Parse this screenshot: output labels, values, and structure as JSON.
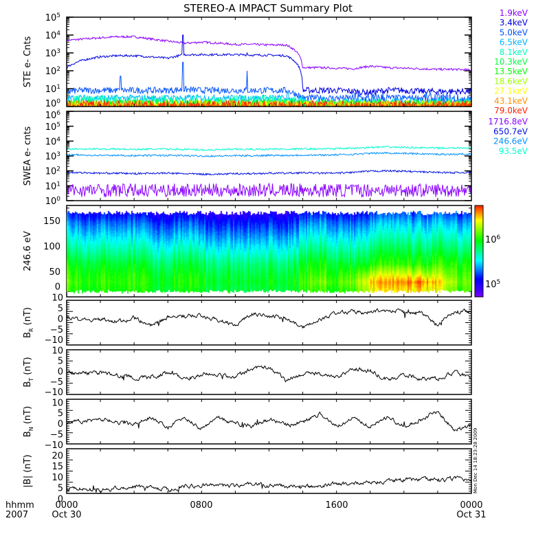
{
  "title": "STEREO-A IMPACT Summary Plot",
  "timestamp": "Mon Dec 14 18:23:28 2009",
  "x_axis": {
    "unit_label": "hhmm",
    "year_label": "2007",
    "ticks": [
      {
        "hour": 0,
        "label": "0000",
        "date": "Oct 30"
      },
      {
        "hour": 8,
        "label": "0800",
        "date": ""
      },
      {
        "hour": 16,
        "label": "1600",
        "date": ""
      },
      {
        "hour": 24,
        "label": "0000",
        "date": "Oct 31"
      }
    ]
  },
  "chart_data": [
    {
      "id": "ste",
      "type": "line",
      "ylabel": "STE e- Cnts",
      "yscale": "log",
      "ylim_exp": [
        0,
        5
      ],
      "ytick_base": "10",
      "ytick_exps": [
        "0",
        "1",
        "2",
        "3",
        "4",
        "5"
      ],
      "x_hours": [
        0,
        1,
        2,
        3,
        4,
        5,
        6,
        7,
        8,
        9,
        10,
        11,
        12,
        13,
        14,
        15,
        16,
        17,
        18,
        19,
        20,
        21,
        22,
        23,
        24
      ],
      "series": [
        {
          "name": "1.9keV",
          "color": "#8a00ff",
          "values": [
            5000,
            6000,
            7000,
            8000,
            8000,
            6000,
            4500,
            3500,
            4000,
            3500,
            3000,
            3000,
            2800,
            2800,
            150,
            150,
            140,
            130,
            180,
            150,
            140,
            130,
            120,
            120,
            110
          ]
        },
        {
          "name": "3.4keV",
          "color": "#0000e0",
          "values": [
            150,
            400,
            600,
            700,
            700,
            600,
            500,
            800,
            800,
            800,
            800,
            750,
            750,
            700,
            8,
            8,
            8,
            7,
            6,
            8,
            8,
            7,
            7,
            7,
            7
          ]
        },
        {
          "name": "5.0keV",
          "color": "#0050ff",
          "values": [
            7,
            8,
            8,
            8,
            8,
            8,
            8,
            9,
            8,
            8,
            8,
            8,
            8,
            8,
            3,
            3,
            3,
            3,
            2.5,
            3,
            3,
            3,
            2.5,
            2.5,
            2
          ]
        },
        {
          "name": "6.5keV",
          "color": "#00b0ff",
          "values": [
            3,
            3,
            3,
            3,
            3,
            3,
            3,
            3,
            3,
            3,
            3,
            3,
            3,
            3,
            1.6,
            1.6,
            1.6,
            1.5,
            1.5,
            1.6,
            1.5,
            1.5,
            1.5,
            1.5,
            1.5
          ]
        },
        {
          "name": "8.1keV",
          "color": "#00ffc0",
          "values": [
            2,
            2,
            2,
            2,
            2,
            2,
            2,
            2,
            2,
            2,
            2,
            2,
            2,
            2,
            1.3,
            1.3,
            1.3,
            1.2,
            1.2,
            1.3,
            1.2,
            1.2,
            1.2,
            1.2,
            1.2
          ]
        },
        {
          "name": "10.3keV",
          "color": "#00ff40",
          "values": [
            1.3,
            1.3,
            1.3,
            1.3,
            1.3,
            1.3,
            1.3,
            1.3,
            1.3,
            1.3,
            1.3,
            1.3,
            1.3,
            1.3,
            1.1,
            1.1,
            1.1,
            1.1,
            1.1,
            1.1,
            1.1,
            1.1,
            1.1,
            1.1,
            1.1
          ]
        },
        {
          "name": "13.5keV",
          "color": "#00ff00",
          "values": [
            1.1,
            1.1,
            1.1,
            1.1,
            1.1,
            1.1,
            1.1,
            1.1,
            1.1,
            1.1,
            1.1,
            1.1,
            1.1,
            1.1,
            1,
            1,
            1,
            1,
            1,
            1,
            1,
            1,
            1,
            1,
            1
          ]
        },
        {
          "name": "18.6keV",
          "color": "#a0ff00",
          "values": [
            1,
            1,
            1,
            1,
            1,
            1,
            1,
            1,
            1,
            1,
            1,
            1,
            1,
            1,
            1,
            1,
            1,
            1,
            1,
            1,
            1,
            1,
            1,
            1,
            1
          ]
        },
        {
          "name": "27.1keV",
          "color": "#ffff00",
          "values": [
            1,
            1,
            1,
            1,
            1,
            1,
            1,
            1,
            1,
            1,
            1,
            1,
            1,
            1,
            1,
            1,
            1,
            1,
            1,
            1,
            1,
            1,
            1,
            1,
            1
          ]
        },
        {
          "name": "43.1keV",
          "color": "#ff9000",
          "values": [
            1,
            1,
            1,
            1,
            1,
            1,
            1,
            1,
            1,
            1,
            1,
            1,
            1,
            1,
            1,
            1,
            1,
            1,
            1,
            1,
            1,
            1,
            1,
            1,
            1
          ]
        },
        {
          "name": "79.0keV",
          "color": "#ff2000",
          "values": [
            1,
            1,
            1,
            1,
            1,
            1,
            1,
            1,
            1,
            1,
            1,
            1,
            1,
            1,
            1,
            1,
            1,
            1,
            1,
            1,
            1,
            1,
            1,
            1,
            1
          ]
        }
      ],
      "spikes": [
        {
          "series": "5.0keV",
          "hour": 3.2,
          "value": 50
        },
        {
          "series": "3.4keV",
          "hour": 6.9,
          "value": 10000
        },
        {
          "series": "5.0keV",
          "hour": 6.9,
          "value": 300
        },
        {
          "series": "3.4keV",
          "hour": 10.7,
          "value": 1000
        },
        {
          "series": "5.0keV",
          "hour": 10.7,
          "value": 100
        }
      ]
    },
    {
      "id": "swea",
      "type": "line",
      "ylabel": "SWEA e- cnts",
      "yscale": "log",
      "ylim_exp": [
        0,
        6
      ],
      "ytick_base": "10",
      "ytick_exps": [
        "0",
        "1",
        "2",
        "3",
        "4",
        "5",
        "6"
      ],
      "x_hours": [
        0,
        1,
        2,
        3,
        4,
        5,
        6,
        7,
        8,
        9,
        10,
        11,
        12,
        13,
        14,
        15,
        16,
        17,
        18,
        19,
        20,
        21,
        22,
        23,
        24
      ],
      "series": [
        {
          "name": "1716.8eV",
          "color": "#8a00ff",
          "values": [
            5,
            5,
            5,
            5,
            5,
            5,
            5,
            5,
            5,
            5,
            5,
            5,
            5,
            5,
            5,
            5,
            5,
            5,
            5,
            5,
            5,
            5,
            5,
            5,
            5
          ]
        },
        {
          "name": "650.7eV",
          "color": "#0010e0",
          "values": [
            80,
            75,
            70,
            70,
            65,
            70,
            70,
            65,
            60,
            60,
            65,
            65,
            70,
            70,
            75,
            70,
            70,
            80,
            95,
            100,
            95,
            85,
            80,
            75,
            80
          ]
        },
        {
          "name": "246.6eV",
          "color": "#0090ff",
          "values": [
            1200,
            1150,
            1100,
            1100,
            1050,
            1100,
            1100,
            1050,
            1000,
            1000,
            1050,
            1050,
            1100,
            1100,
            1150,
            1150,
            1200,
            1300,
            1500,
            1600,
            1500,
            1400,
            1300,
            1300,
            1400
          ]
        },
        {
          "name": "93.5eV",
          "color": "#00ffd0",
          "values": [
            3000,
            3000,
            2900,
            2900,
            2800,
            2900,
            2900,
            2800,
            2600,
            2600,
            2800,
            2800,
            2900,
            2900,
            3000,
            3000,
            3100,
            3300,
            3800,
            4000,
            3800,
            3600,
            3400,
            3400,
            3600
          ]
        }
      ]
    },
    {
      "id": "spectrogram",
      "type": "heatmap",
      "ylabel": "246.6 eV",
      "ylim": [
        0,
        180
      ],
      "yticks": [
        "0",
        "50",
        "100",
        "150"
      ],
      "ytick_values": [
        0,
        50,
        100,
        150
      ],
      "colorbar": {
        "log_range": [
          4.71,
          6.75
        ],
        "tick_labels": [
          {
            "base": "10",
            "exp": "5",
            "log": 5
          },
          {
            "base": "10",
            "exp": "6",
            "log": 6
          }
        ]
      },
      "x_hours": [
        0,
        1,
        2,
        3,
        4,
        5,
        6,
        7,
        8,
        9,
        10,
        11,
        12,
        13,
        14,
        15,
        16,
        17,
        18,
        19,
        20,
        21,
        22,
        23,
        24
      ],
      "y_bins": [
        165,
        145,
        125,
        105,
        85,
        65,
        45,
        30,
        15
      ],
      "y_extent": [
        8,
        170
      ],
      "log_values": [
        [
          5.2,
          5.1,
          5.1,
          5.0,
          5.1,
          5.0,
          5.0,
          5.1,
          5.0,
          4.95,
          5.0,
          4.95,
          5.0,
          5.0,
          5.1,
          5.2,
          5.1,
          5.1,
          5.2,
          5.3,
          5.3,
          5.2,
          5.3,
          5.2,
          5.2
        ],
        [
          5.4,
          5.3,
          5.3,
          5.2,
          5.3,
          5.2,
          5.2,
          5.3,
          5.2,
          5.15,
          5.2,
          5.15,
          5.2,
          5.2,
          5.3,
          5.4,
          5.3,
          5.3,
          5.4,
          5.5,
          5.5,
          5.4,
          5.5,
          5.4,
          5.4
        ],
        [
          5.55,
          5.45,
          5.45,
          5.35,
          5.45,
          5.35,
          5.35,
          5.45,
          5.35,
          5.3,
          5.35,
          5.3,
          5.35,
          5.35,
          5.45,
          5.55,
          5.45,
          5.45,
          5.55,
          5.65,
          5.65,
          5.55,
          5.65,
          5.55,
          5.55
        ],
        [
          5.7,
          5.6,
          5.6,
          5.5,
          5.6,
          5.5,
          5.5,
          5.6,
          5.5,
          5.45,
          5.5,
          5.45,
          5.5,
          5.5,
          5.6,
          5.7,
          5.6,
          5.6,
          5.7,
          5.8,
          5.8,
          5.7,
          5.8,
          5.7,
          5.7
        ],
        [
          5.85,
          5.75,
          5.75,
          5.65,
          5.75,
          5.65,
          5.65,
          5.75,
          5.65,
          5.6,
          5.65,
          5.6,
          5.65,
          5.65,
          5.75,
          5.85,
          5.75,
          5.75,
          5.85,
          5.95,
          5.95,
          5.85,
          5.95,
          5.85,
          5.85
        ],
        [
          6.0,
          5.9,
          5.9,
          5.8,
          5.9,
          5.8,
          5.8,
          5.9,
          5.8,
          5.75,
          5.8,
          5.75,
          5.8,
          5.8,
          5.9,
          6.0,
          5.9,
          5.9,
          6.0,
          6.1,
          6.1,
          6.0,
          6.1,
          6.0,
          6.0
        ],
        [
          6.1,
          6.0,
          6.0,
          5.9,
          6.0,
          5.9,
          5.9,
          6.0,
          5.9,
          5.85,
          5.9,
          5.85,
          5.9,
          5.9,
          6.0,
          6.1,
          6.0,
          6.1,
          6.3,
          6.4,
          6.4,
          6.3,
          6.3,
          6.1,
          6.1
        ],
        [
          6.15,
          6.05,
          6.05,
          5.95,
          6.05,
          5.95,
          5.95,
          6.05,
          5.95,
          5.9,
          5.95,
          5.9,
          5.95,
          5.95,
          6.05,
          6.2,
          6.1,
          6.2,
          6.5,
          6.6,
          6.65,
          6.6,
          6.5,
          6.2,
          6.15
        ],
        [
          6.1,
          6.0,
          6.0,
          5.9,
          6.0,
          5.9,
          5.9,
          6.0,
          5.9,
          5.85,
          5.9,
          5.85,
          5.9,
          5.9,
          6.0,
          6.1,
          6.0,
          6.1,
          6.4,
          6.5,
          6.5,
          6.45,
          6.4,
          6.1,
          6.1
        ]
      ]
    },
    {
      "id": "br",
      "type": "line",
      "ylabel": {
        "main": "B",
        "sub": "R",
        "unit": "(nT)"
      },
      "ylim": [
        -10,
        10
      ],
      "yticks": [
        "-10",
        "-5",
        "0",
        "5",
        "10"
      ],
      "ytick_values": [
        -10,
        -5,
        0,
        5,
        10
      ],
      "x_hours": [
        0,
        1,
        2,
        3,
        4,
        5,
        6,
        7,
        8,
        9,
        10,
        11,
        12,
        13,
        14,
        15,
        16,
        17,
        18,
        19,
        20,
        21,
        22,
        23,
        24
      ],
      "series": [
        {
          "name": "BR",
          "color": "#000000",
          "values": [
            2.5,
            1.5,
            1.5,
            0.5,
            2,
            -1,
            2.5,
            3,
            3,
            1,
            -1,
            4,
            3,
            2,
            -2,
            1,
            4.5,
            5,
            4.5,
            5.5,
            4.5,
            4.5,
            -1,
            5,
            5
          ]
        }
      ]
    },
    {
      "id": "bt",
      "type": "line",
      "ylabel": {
        "main": "B",
        "sub": "T",
        "unit": "(nT)"
      },
      "ylim": [
        -10,
        10
      ],
      "yticks": [
        "-10",
        "-5",
        "0",
        "5",
        "10"
      ],
      "ytick_values": [
        -10,
        -5,
        0,
        5,
        10
      ],
      "x_hours": [
        0,
        1,
        2,
        3,
        4,
        5,
        6,
        7,
        8,
        9,
        10,
        11,
        12,
        13,
        14,
        15,
        16,
        17,
        18,
        19,
        20,
        21,
        22,
        23,
        24
      ],
      "series": [
        {
          "name": "BT",
          "color": "#000000",
          "values": [
            0,
            -0.5,
            0,
            -1.5,
            -2.5,
            -2.5,
            0,
            -3,
            -1,
            -1.5,
            -2,
            1.5,
            2,
            -3.5,
            -1,
            -1,
            -2,
            1.5,
            0.5,
            -3.5,
            -1,
            -3,
            -3,
            0,
            -2.5
          ]
        }
      ]
    },
    {
      "id": "bn",
      "type": "line",
      "ylabel": {
        "main": "B",
        "sub": "N",
        "unit": "(nT)"
      },
      "ylim": [
        -10,
        10
      ],
      "yticks": [
        "-10",
        "-5",
        "0",
        "5",
        "10"
      ],
      "ytick_values": [
        -10,
        -5,
        0,
        5,
        10
      ],
      "x_hours": [
        0,
        1,
        2,
        3,
        4,
        5,
        6,
        7,
        8,
        9,
        10,
        11,
        12,
        13,
        14,
        15,
        16,
        17,
        18,
        19,
        20,
        21,
        22,
        23,
        24
      ],
      "series": [
        {
          "name": "BN",
          "color": "#000000",
          "values": [
            0,
            0,
            1.5,
            -0.5,
            -1,
            2,
            -2.5,
            1.5,
            -3,
            1.5,
            -1,
            -2,
            1,
            -1.5,
            -0.5,
            3.5,
            -2,
            1.5,
            -2,
            2,
            -2,
            1,
            4.5,
            -4,
            -2
          ]
        }
      ]
    },
    {
      "id": "bmag",
      "type": "line",
      "ylabel": {
        "main": "|B|",
        "sub": "",
        "unit": "(nT)"
      },
      "ylim": [
        0,
        20
      ],
      "yticks": [
        "0",
        "5",
        "10",
        "15",
        "20"
      ],
      "ytick_values": [
        0,
        5,
        10,
        15,
        20
      ],
      "x_hours": [
        0,
        1,
        2,
        3,
        4,
        5,
        6,
        7,
        8,
        9,
        10,
        11,
        12,
        13,
        14,
        15,
        16,
        17,
        18,
        19,
        20,
        21,
        22,
        23,
        24
      ],
      "series": [
        {
          "name": "|B|",
          "color": "#000000",
          "values": [
            2,
            2,
            1,
            2.5,
            3,
            3,
            1.5,
            3.3,
            3.5,
            3.5,
            3.5,
            4,
            3.5,
            3.5,
            3,
            3,
            4.5,
            4.5,
            5,
            5.5,
            6,
            6.5,
            6,
            6.5,
            6
          ]
        }
      ]
    }
  ]
}
